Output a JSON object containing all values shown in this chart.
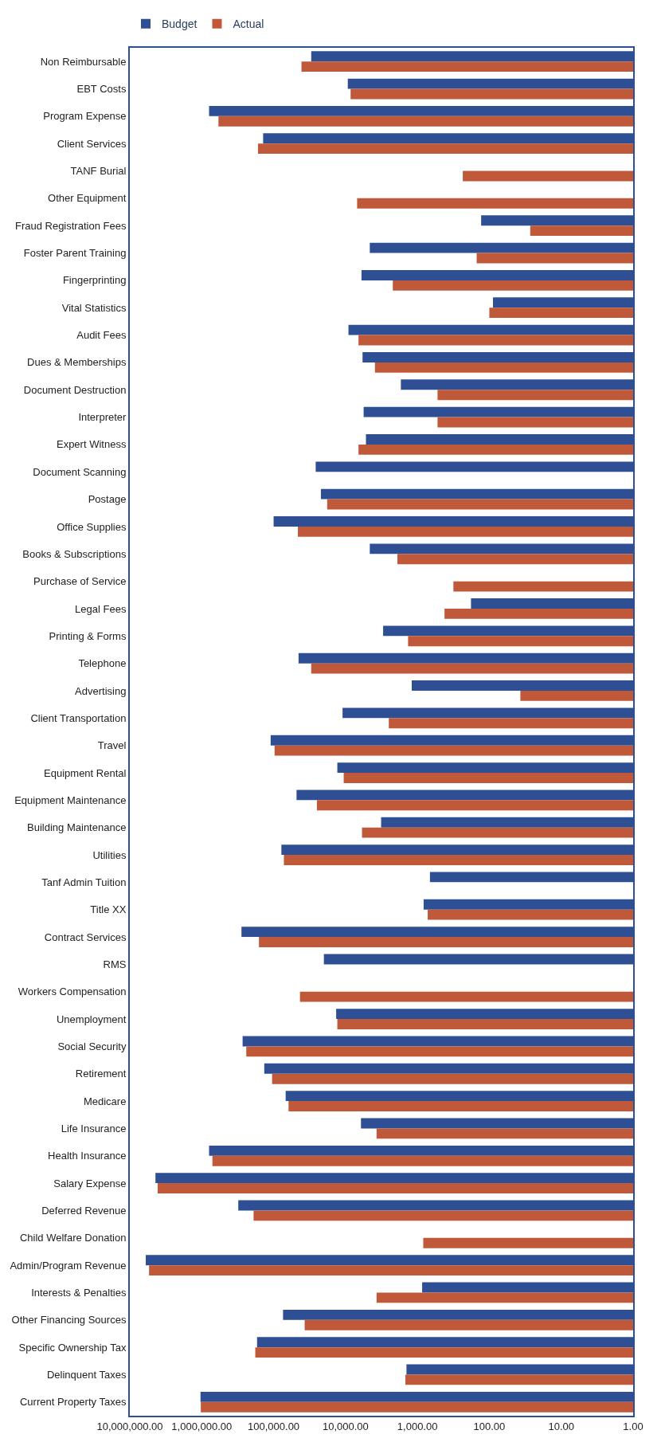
{
  "chart_data": {
    "type": "bar",
    "orientation": "horizontal",
    "log": "x",
    "legend": "top left",
    "categories": [
      "Non Reimbursable",
      "EBT Costs",
      "Program Expense",
      "Client Services",
      "TANF Burial",
      "Other Equipment",
      "Fraud Registration Fees",
      "Foster Parent Training",
      "Fingerprinting",
      "Vital Statistics",
      "Audit Fees",
      "Dues & Memberships",
      "Document Destruction",
      "Interpreter",
      "Expert Witness",
      "Document Scanning",
      "Postage",
      "Office Supplies",
      "Books & Subscriptions",
      "Purchase of Service",
      "Legal Fees",
      "Printing & Forms",
      "Telephone",
      "Advertising",
      "Client Transportation",
      "Travel",
      "Equipment Rental",
      "Equipment Maintenance",
      "Building Maintenance",
      "Utilities",
      "Tanf Admin Tuition",
      "Title XX",
      "Contract Services",
      "RMS",
      "Workers Compensation",
      "Unemployment",
      "Social Security",
      "Retirement",
      "Medicare",
      "Life Insurance",
      "Health Insurance",
      "Salary Expense",
      "Deferred Revenue",
      "Child Welfare Donation",
      "Admin/Program Revenue",
      "Interests & Penalties",
      "Other Financing Sources",
      "Specific Ownership Tax",
      "Delinquent Taxes",
      "Current Property Taxes"
    ],
    "series": [
      {
        "name": "Budget",
        "color": "#2e4f93",
        "values": [
          30000,
          9300,
          790000,
          140000,
          null,
          null,
          130,
          4600,
          6000,
          89,
          9100,
          5800,
          1700,
          5600,
          5200,
          26000,
          22000,
          100000,
          4600,
          null,
          180,
          3000,
          45000,
          1200,
          11000,
          110000,
          13000,
          48000,
          3200,
          78000,
          670,
          820,
          280000,
          20000,
          null,
          13500,
          270000,
          135000,
          68000,
          6100,
          790000,
          4400000,
          310000,
          null,
          6000000,
          860,
          74000,
          170000,
          1420,
          1040000
        ]
      },
      {
        "name": "Actual",
        "color": "#c0583a",
        "values": [
          41000,
          8500,
          585000,
          165000,
          234,
          6900,
          27,
          150,
          2200,
          100,
          6600,
          3900,
          525,
          525,
          6600,
          null,
          18000,
          46000,
          1900,
          316,
          420,
          1350,
          30000,
          37,
          2500,
          97000,
          10600,
          25000,
          5900,
          72000,
          null,
          720,
          160000,
          null,
          43000,
          13000,
          240000,
          105000,
          62000,
          3700,
          710000,
          4100000,
          190000,
          830,
          5400000,
          3700,
          37000,
          180000,
          1470,
          1030000
        ]
      }
    ],
    "xlim": [
      10000000,
      1
    ],
    "xticks": [
      {
        "value": 10000000,
        "label": "10,000,000.00"
      },
      {
        "value": 1000000,
        "label": "1,000,000.00"
      },
      {
        "value": 100000,
        "label": "100,000.00"
      },
      {
        "value": 10000,
        "label": "10,000.00"
      },
      {
        "value": 1000,
        "label": "1,000.00"
      },
      {
        "value": 100,
        "label": "100.00"
      },
      {
        "value": 10,
        "label": "10.00"
      },
      {
        "value": 1,
        "label": "1.00"
      }
    ]
  }
}
